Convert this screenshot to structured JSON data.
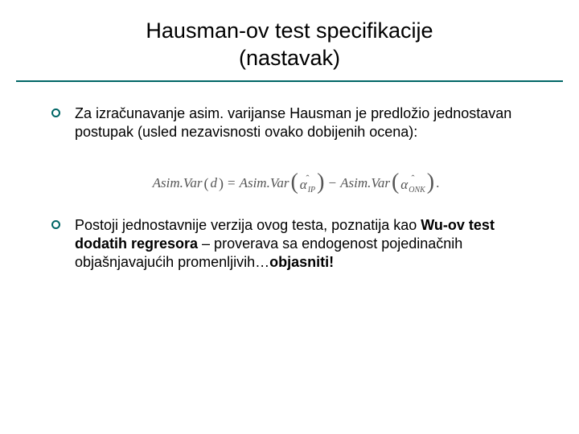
{
  "title": {
    "line1": "Hausman-ov test specifikacije",
    "line2": "(nastavak)",
    "rule_color": "#006666"
  },
  "bullets": [
    {
      "text": "Za izračunavanje asim. varijanse Hausman je predložio jednostavan postupak (usled nezavisnosti ovako dobijenih ocena):"
    },
    {
      "html_parts": [
        {
          "t": "Postoji jednostavnije verzija ovog testa, poznatija kao ",
          "b": false
        },
        {
          "t": "Wu-ov test dodatih regresora",
          "b": true
        },
        {
          "t": " – proverava sa endogenost pojedinačnih objašnjavajućih promenljivih…",
          "b": false
        },
        {
          "t": "objasniti!",
          "b": true
        }
      ]
    }
  ],
  "formula": {
    "lhs_func": "Asim.Var",
    "lhs_arg": "d",
    "eq": "=",
    "term1_func": "Asim.Var",
    "term1_sym": "α",
    "term1_sub": "IP",
    "minus": "−",
    "term2_func": "Asim.Var",
    "term2_sym": "α",
    "term2_sub": "ONK",
    "period": "."
  },
  "style": {
    "bullet_ring_color": "#006666",
    "title_fontsize": 27,
    "body_fontsize": 18,
    "formula_color": "#555555",
    "background": "#ffffff"
  }
}
